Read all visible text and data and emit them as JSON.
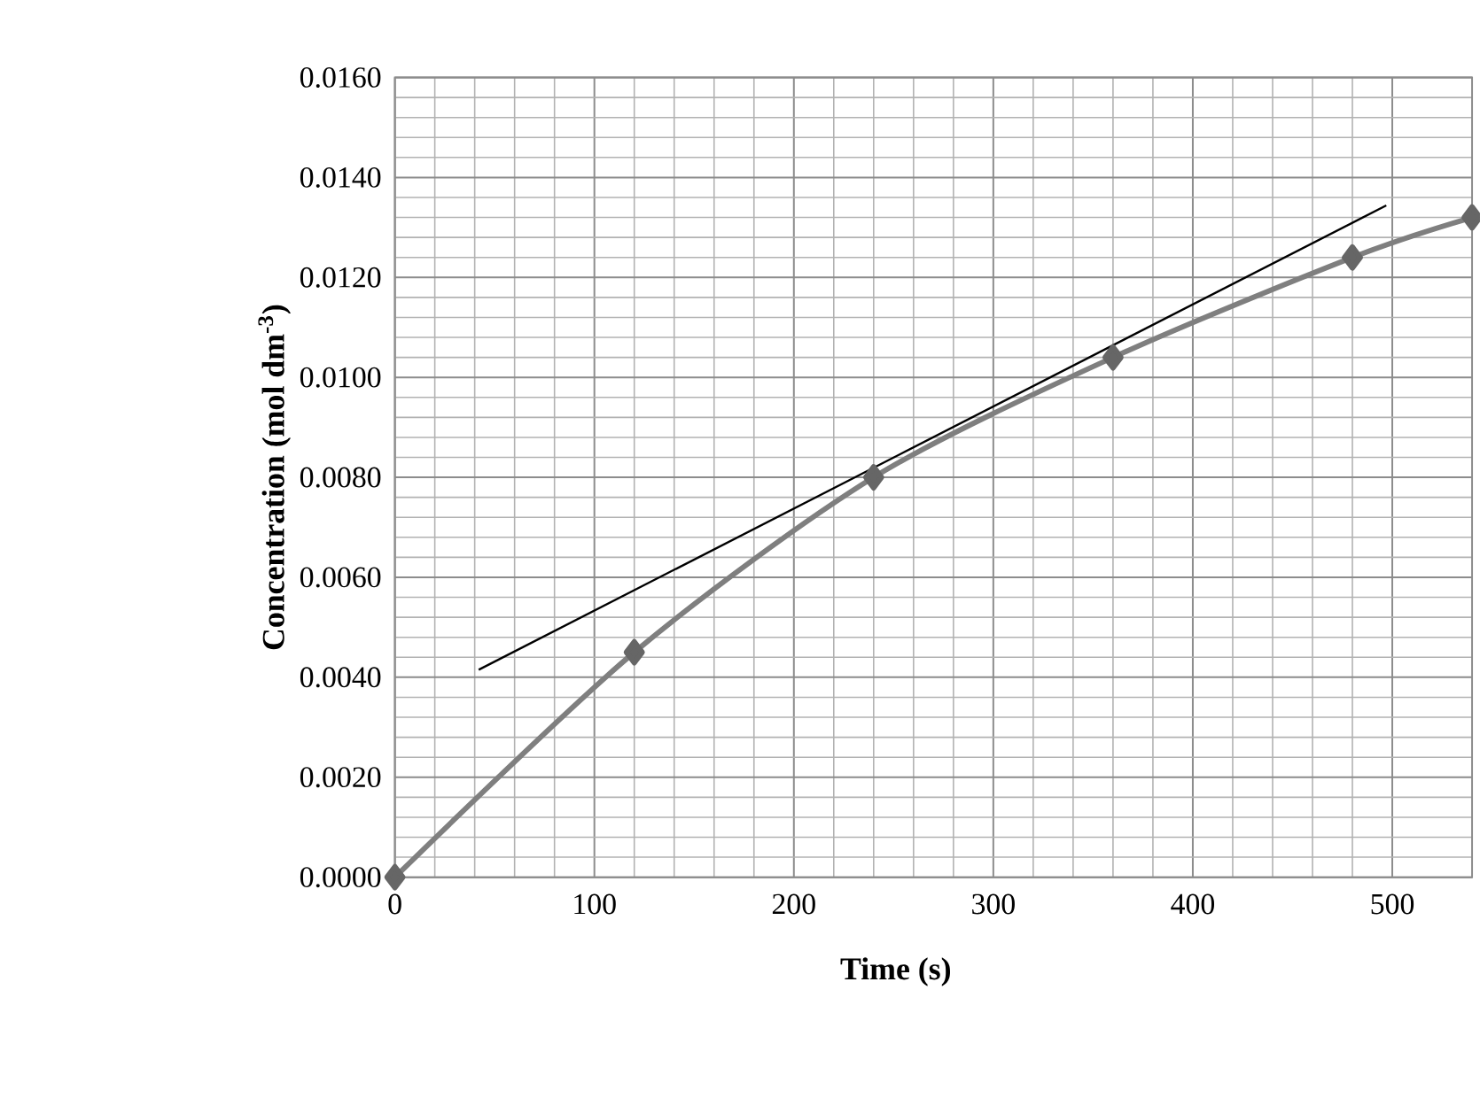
{
  "chart_data": {
    "type": "line",
    "xlabel": "Time (s)",
    "ylabel": "Concentration (mol dm$^{-3}$)",
    "xlim": [
      0,
      540
    ],
    "ylim": [
      0,
      0.016
    ],
    "xticks": [
      0,
      100,
      200,
      300,
      400,
      500
    ],
    "yticks": [
      {
        "value": 0,
        "label": "0.0000"
      },
      {
        "value": 0.002,
        "label": "0.0020"
      },
      {
        "value": 0.004,
        "label": "0.0040"
      },
      {
        "value": 0.006,
        "label": "0.0060"
      },
      {
        "value": 0.008,
        "label": "0.0080"
      },
      {
        "value": 0.01,
        "label": "0.0100"
      },
      {
        "value": 0.012,
        "label": "0.0120"
      },
      {
        "value": 0.014,
        "label": "0.0140"
      },
      {
        "value": 0.016,
        "label": "0.0160"
      }
    ],
    "grid": true,
    "line_style": "solid",
    "series": [
      {
        "color": "#7f7f7f",
        "marker": "diamond",
        "x": [
          0,
          120,
          240,
          360,
          480,
          540
        ],
        "values": [
          0,
          0.0045,
          0.008,
          0.0104,
          0.0124,
          0.0132
        ]
      },
      {
        "color": "#000000",
        "marker": "none",
        "x": [
          42,
          497
        ],
        "values": [
          0.00415,
          0.01344
        ]
      }
    ]
  }
}
